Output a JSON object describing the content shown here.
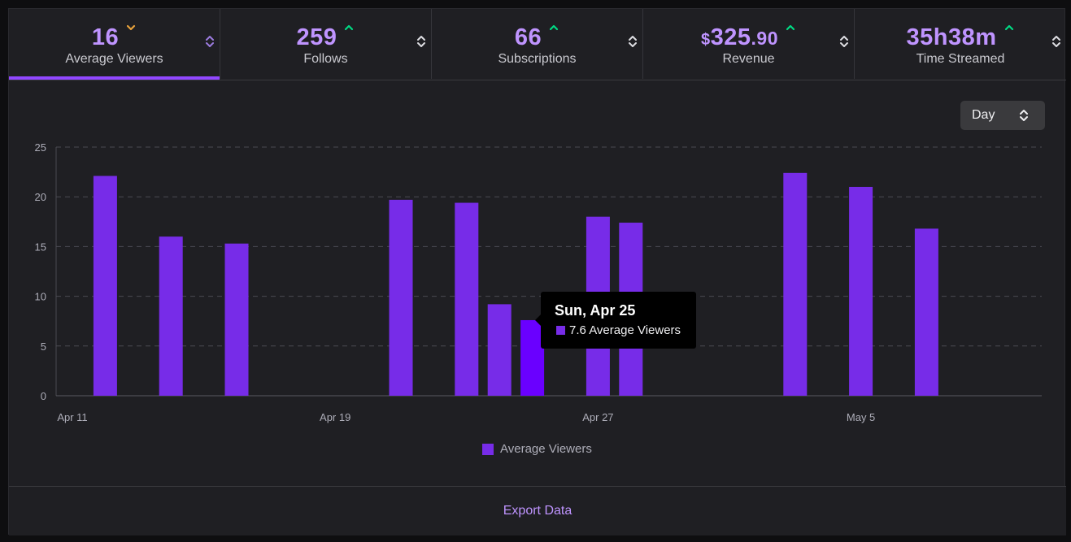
{
  "stats": [
    {
      "value": "16",
      "currency": "",
      "decimal": "",
      "label": "Average Viewers",
      "trend": "down",
      "trend_color": "#e9a23b",
      "active": true,
      "sort_color": "#9c7ce0"
    },
    {
      "value": "259",
      "currency": "",
      "decimal": "",
      "label": "Follows",
      "trend": "up",
      "trend_color": "#00db84",
      "active": false,
      "sort_color": "#dedee3"
    },
    {
      "value": "66",
      "currency": "",
      "decimal": "",
      "label": "Subscriptions",
      "trend": "up",
      "trend_color": "#00db84",
      "active": false,
      "sort_color": "#dedee3"
    },
    {
      "value": "325",
      "currency": "$",
      "decimal": ".90",
      "label": "Revenue",
      "trend": "up",
      "trend_color": "#00db84",
      "active": false,
      "sort_color": "#dedee3"
    },
    {
      "value": "35h38m",
      "currency": "",
      "decimal": "",
      "label": "Time Streamed",
      "trend": "up",
      "trend_color": "#00db84",
      "active": false,
      "sort_color": "#dedee3"
    }
  ],
  "period_select": {
    "value": "Day",
    "icon": "chevron-up-down-icon"
  },
  "chart_data": {
    "type": "bar",
    "series": [
      {
        "name": "Average Viewers",
        "color": "#772ce8",
        "highlight_color": "#6a00ff"
      }
    ],
    "x_start": "2021-04-11",
    "x_end": "2021-05-09",
    "x_ticks": [
      {
        "date": "2021-04-11",
        "label": "Apr 11"
      },
      {
        "date": "2021-04-19",
        "label": "Apr 19"
      },
      {
        "date": "2021-04-27",
        "label": "Apr 27"
      },
      {
        "date": "2021-05-05",
        "label": "May 5"
      }
    ],
    "points": [
      {
        "date": "2021-04-12",
        "value": 22.1
      },
      {
        "date": "2021-04-14",
        "value": 16.0
      },
      {
        "date": "2021-04-16",
        "value": 15.3
      },
      {
        "date": "2021-04-21",
        "value": 19.7
      },
      {
        "date": "2021-04-23",
        "value": 19.4
      },
      {
        "date": "2021-04-24",
        "value": 9.2
      },
      {
        "date": "2021-04-25",
        "value": 7.6,
        "highlighted": true
      },
      {
        "date": "2021-04-27",
        "value": 18.0
      },
      {
        "date": "2021-04-28",
        "value": 17.4
      },
      {
        "date": "2021-05-03",
        "value": 22.4
      },
      {
        "date": "2021-05-05",
        "value": 21.0
      },
      {
        "date": "2021-05-07",
        "value": 16.8
      }
    ],
    "ylim": [
      0,
      25
    ],
    "y_ticks": [
      0,
      5,
      10,
      15,
      20,
      25
    ],
    "grid": "horizontal-dashed",
    "legend": "bottom-center"
  },
  "tooltip": {
    "title": "Sun, Apr 25",
    "text": "7.6 Average Viewers"
  },
  "legend": {
    "label": "Average Viewers"
  },
  "footer": {
    "export_label": "Export Data"
  }
}
